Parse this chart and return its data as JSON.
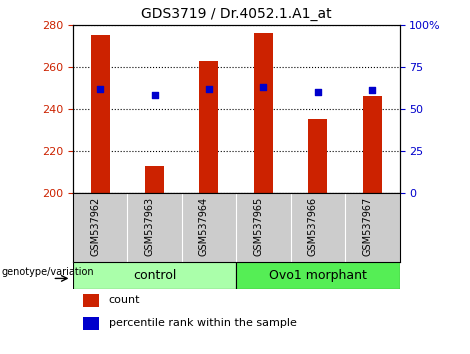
{
  "title": "GDS3719 / Dr.4052.1.A1_at",
  "samples": [
    "GSM537962",
    "GSM537963",
    "GSM537964",
    "GSM537965",
    "GSM537966",
    "GSM537967"
  ],
  "counts": [
    275,
    213,
    263,
    276,
    235,
    246
  ],
  "percentiles": [
    62,
    58,
    62,
    63,
    60,
    61
  ],
  "ylim_left": [
    200,
    280
  ],
  "ylim_right": [
    0,
    100
  ],
  "yticks_left": [
    200,
    220,
    240,
    260,
    280
  ],
  "yticks_right": [
    0,
    25,
    50,
    75,
    100
  ],
  "ytick_labels_right": [
    "0",
    "25",
    "50",
    "75",
    "100%"
  ],
  "bar_color": "#cc2200",
  "dot_color": "#0000cc",
  "bar_width": 0.35,
  "group_labels": [
    "control",
    "Ovo1 morphant"
  ],
  "group_colors": [
    "#aaffaa",
    "#55ee55"
  ],
  "group_ranges": [
    [
      0,
      2
    ],
    [
      3,
      5
    ]
  ],
  "xlabel_area_color": "#cccccc",
  "genotype_label": "genotype/variation",
  "legend_count_label": "count",
  "legend_percentile_label": "percentile rank within the sample",
  "title_fontsize": 10,
  "tick_fontsize": 8,
  "label_fontsize": 7,
  "group_fontsize": 9,
  "axis_left_color": "#cc2200",
  "axis_right_color": "#0000cc"
}
